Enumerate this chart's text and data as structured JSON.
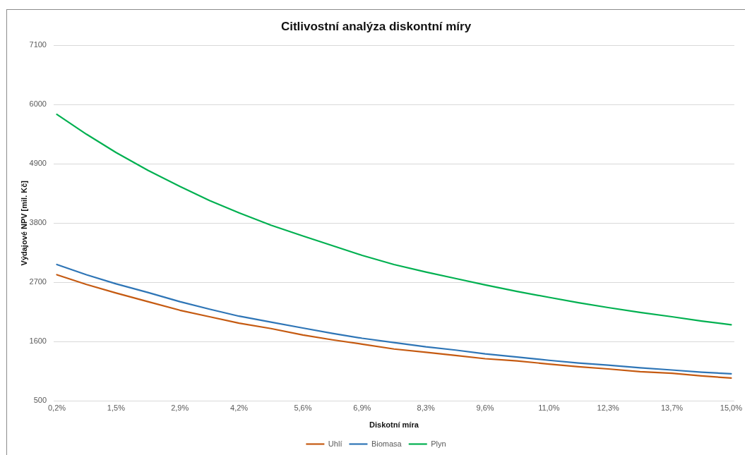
{
  "chart_data": {
    "type": "line",
    "title": "Citlivostní analýza diskontní míry",
    "xlabel": "Diskotní míra",
    "ylabel": "Výdajové NPV [mil. Kč]",
    "x": [
      0.2,
      0.85,
      1.5,
      2.2,
      2.9,
      3.55,
      4.2,
      4.9,
      5.6,
      6.25,
      6.9,
      7.6,
      8.3,
      8.95,
      9.6,
      10.3,
      11,
      11.65,
      12.3,
      13,
      13.7,
      14.35,
      15
    ],
    "series": [
      {
        "name": "Uhlí",
        "color": "#c55a11",
        "values": [
          2840,
          2660,
          2500,
          2340,
          2180,
          2060,
          1940,
          1840,
          1720,
          1630,
          1550,
          1460,
          1400,
          1340,
          1280,
          1240,
          1180,
          1130,
          1090,
          1040,
          1010,
          960,
          920
        ]
      },
      {
        "name": "Biomasa",
        "color": "#2e75b6",
        "values": [
          3030,
          2840,
          2670,
          2510,
          2340,
          2200,
          2070,
          1960,
          1850,
          1750,
          1660,
          1580,
          1500,
          1440,
          1370,
          1310,
          1250,
          1200,
          1160,
          1110,
          1070,
          1030,
          1000
        ]
      },
      {
        "name": "Plyn",
        "color": "#00b050",
        "values": [
          5820,
          5450,
          5110,
          4780,
          4480,
          4220,
          3990,
          3760,
          3560,
          3380,
          3200,
          3030,
          2890,
          2770,
          2650,
          2530,
          2420,
          2320,
          2230,
          2140,
          2060,
          1980,
          1910
        ]
      }
    ],
    "xlim": [
      0.13,
      15.07
    ],
    "xticks": [
      {
        "value": 0.2,
        "label": "0,2%"
      },
      {
        "value": 1.5,
        "label": "1,5%"
      },
      {
        "value": 2.9,
        "label": "2,9%"
      },
      {
        "value": 4.2,
        "label": "4,2%"
      },
      {
        "value": 5.6,
        "label": "5,6%"
      },
      {
        "value": 6.9,
        "label": "6,9%"
      },
      {
        "value": 8.3,
        "label": "8,3%"
      },
      {
        "value": 9.6,
        "label": "9,6%"
      },
      {
        "value": 11,
        "label": "11,0%"
      },
      {
        "value": 12.3,
        "label": "12,3%"
      },
      {
        "value": 13.7,
        "label": "13,7%"
      },
      {
        "value": 15,
        "label": "15,0%"
      }
    ],
    "ylim": [
      500,
      7100
    ],
    "yticks": [
      500,
      1600,
      2700,
      3800,
      4900,
      6000,
      7100
    ],
    "grid": "y",
    "legend": "bottom"
  }
}
